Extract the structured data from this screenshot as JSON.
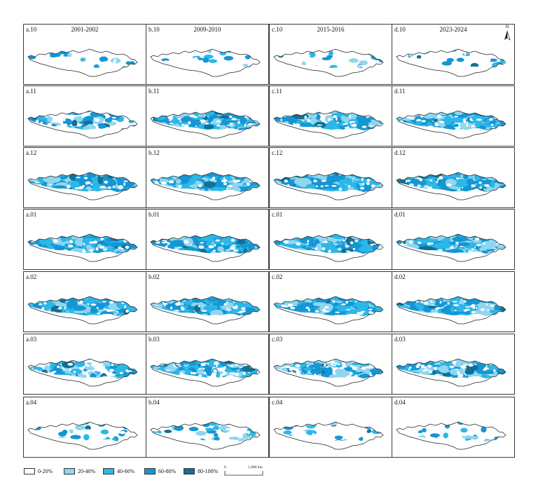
{
  "periods": [
    {
      "letter": "a",
      "title": "2001-2002"
    },
    {
      "letter": "b",
      "title": "2009-2010"
    },
    {
      "letter": "c",
      "title": "2015-2016"
    },
    {
      "letter": "d",
      "title": "2023-2024"
    }
  ],
  "months": [
    "10",
    "11",
    "12",
    "01",
    "02",
    "03",
    "04"
  ],
  "panel_labels": [
    [
      "a.10",
      "b.10",
      "c.10",
      "d.10"
    ],
    [
      "a.11",
      "b.11",
      "c.11",
      "d.11"
    ],
    [
      "a.12",
      "b.12",
      "c.12",
      "d.12"
    ],
    [
      "a.01",
      "b.01",
      "c.01",
      "d.01"
    ],
    [
      "a.02",
      "b.02",
      "c.02",
      "d.02"
    ],
    [
      "a.03",
      "b.03",
      "c.03",
      "d.03"
    ],
    [
      "a.04",
      "b.04",
      "c.04",
      "d.04"
    ]
  ],
  "snow_coverage_level": [
    [
      0.06,
      0.03,
      0.06,
      0.04
    ],
    [
      0.28,
      0.62,
      0.58,
      0.66
    ],
    [
      0.76,
      0.7,
      0.8,
      0.72
    ],
    [
      0.74,
      0.72,
      0.75,
      0.76
    ],
    [
      0.68,
      0.66,
      0.7,
      0.66
    ],
    [
      0.36,
      0.48,
      0.42,
      0.52
    ],
    [
      0.1,
      0.12,
      0.08,
      0.08
    ]
  ],
  "north_arrow": {
    "label": "N"
  },
  "legend": {
    "classes": [
      {
        "label": "0-20%",
        "color": "#ffffff"
      },
      {
        "label": "20-40%",
        "color": "#8fd6f0"
      },
      {
        "label": "40-60%",
        "color": "#2cb7e8"
      },
      {
        "label": "60-80%",
        "color": "#1596d4"
      },
      {
        "label": "80-100%",
        "color": "#136f94"
      }
    ],
    "scale": {
      "start": "0",
      "end": "1,000 km"
    }
  }
}
